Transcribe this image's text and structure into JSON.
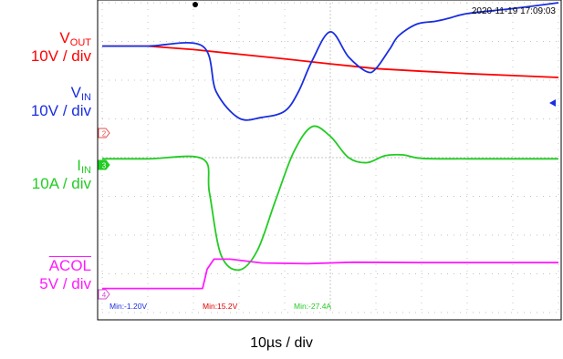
{
  "timestamp": "2020-11-19 17:09:03",
  "time_div": "10µs / div",
  "channels": [
    {
      "id": "vout",
      "name": "V",
      "sub": "OUT",
      "overline": false,
      "scale": "10V / div",
      "color": "#ff0000"
    },
    {
      "id": "vin",
      "name": "V",
      "sub": "IN",
      "overline": false,
      "scale": "10V / div",
      "color": "#1a2ee0"
    },
    {
      "id": "iin",
      "name": "I",
      "sub": "IN",
      "overline": false,
      "scale": "10A / div",
      "color": "#22cc22"
    },
    {
      "id": "acol",
      "name": "ACOL",
      "sub": "",
      "overline": true,
      "scale": "5V / div",
      "color": "#ff1aff"
    }
  ],
  "markers": [
    {
      "text": "2",
      "color": "#e05050"
    },
    {
      "text": "3",
      "color": "#22cc22"
    },
    {
      "text": "4",
      "color": "#d050d0"
    }
  ],
  "measurements": [
    {
      "text": "Min:-1.20V",
      "color": "#1a2ee0"
    },
    {
      "text": "Min:15.2V",
      "color": "#e00000"
    },
    {
      "text": "Min:-27.4A",
      "color": "#22cc22"
    }
  ],
  "chart_data": {
    "type": "line",
    "x_unit": "div",
    "y_unit": "div",
    "xlim": [
      0,
      10
    ],
    "ylim": [
      0,
      8
    ],
    "grid": true,
    "series": [
      {
        "id": "vout",
        "color": "#ff0000",
        "x": [
          0,
          1,
          2,
          3,
          4,
          5,
          6,
          7,
          8,
          9,
          10
        ],
        "y": [
          6.88,
          6.88,
          6.79,
          6.67,
          6.55,
          6.42,
          6.3,
          6.23,
          6.17,
          6.12,
          6.07
        ]
      },
      {
        "id": "vin",
        "color": "#1a2ee0",
        "x": [
          0,
          1,
          2.2,
          2.5,
          3,
          3.5,
          4,
          4.3,
          4.6,
          5,
          5.4,
          5.8,
          6,
          6.3,
          6.5,
          6.9,
          7.3,
          7.6,
          8,
          9,
          10
        ],
        "y": [
          6.88,
          6.88,
          6.88,
          5.7,
          5.02,
          5.04,
          5.2,
          5.7,
          6.5,
          7.25,
          6.6,
          6.22,
          6.3,
          6.8,
          7.15,
          7.45,
          7.52,
          7.6,
          7.72,
          7.85,
          8.0
        ],
        "smooth": true
      },
      {
        "id": "iin",
        "color": "#22cc22",
        "x": [
          0,
          1,
          2.2,
          2.35,
          2.6,
          3,
          3.4,
          3.8,
          4.2,
          4.6,
          5,
          5.4,
          5.8,
          6.2,
          6.6,
          7,
          8,
          9,
          10
        ],
        "y": [
          3.97,
          3.97,
          3.97,
          3.1,
          1.5,
          1.1,
          1.6,
          2.9,
          4.15,
          4.8,
          4.55,
          4.0,
          3.87,
          4.05,
          4.07,
          3.98,
          3.97,
          3.97,
          3.97
        ],
        "smooth": true
      },
      {
        "id": "acol",
        "color": "#ff1aff",
        "x": [
          0,
          1,
          2.2,
          2.3,
          2.45,
          2.8,
          3.5,
          4.5,
          5.5,
          7,
          8.5,
          10
        ],
        "y": [
          0.62,
          0.62,
          0.62,
          1.12,
          1.38,
          1.38,
          1.28,
          1.26,
          1.3,
          1.29,
          1.29,
          1.29
        ],
        "smooth": false
      }
    ]
  }
}
